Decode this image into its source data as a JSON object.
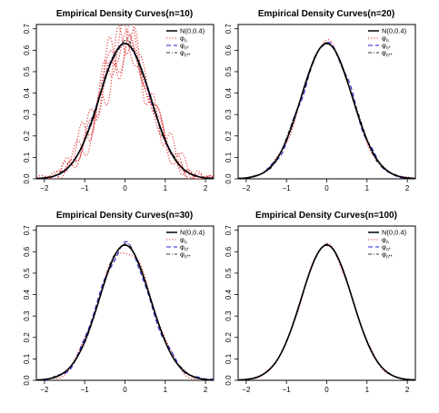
{
  "chart_data": [
    {
      "type": "line",
      "title": "Empirical Density Curves(n=10)",
      "xlabel": "",
      "ylabel": "",
      "xlim": [
        -2.2,
        2.2
      ],
      "ylim": [
        0,
        0.72
      ],
      "x_ticks": [
        -2,
        -1,
        0,
        1,
        2
      ],
      "y_ticks": [
        0.0,
        0.1,
        0.2,
        0.3,
        0.4,
        0.5,
        0.6,
        0.7
      ],
      "grid": false,
      "legend": "top-right",
      "series": [
        {
          "name": "N(0,0.4)",
          "style": "solid",
          "color": "#000000",
          "params": {
            "mean": 0,
            "sd": 0.632
          }
        },
        {
          "name": "φn",
          "style": "dotted",
          "color": "#e03030",
          "spread": 0.08,
          "lines": 5,
          "params": {
            "mean": 0,
            "sd": 0.632
          }
        },
        {
          "name": "φn*",
          "style": "dashed",
          "color": "#2020d0",
          "spread": 0.025,
          "lines": 1,
          "params": {
            "mean": 0,
            "sd": 0.632
          }
        },
        {
          "name": "φn**",
          "style": "dashdot",
          "color": "#333333",
          "spread": 0.015,
          "lines": 1,
          "params": {
            "mean": 0,
            "sd": 0.632
          }
        }
      ]
    },
    {
      "type": "line",
      "title": "Empirical Density Curves(n=20)",
      "xlabel": "",
      "ylabel": "",
      "xlim": [
        -2.2,
        2.2
      ],
      "ylim": [
        0,
        0.72
      ],
      "x_ticks": [
        -2,
        -1,
        0,
        1,
        2
      ],
      "y_ticks": [
        0.0,
        0.1,
        0.2,
        0.3,
        0.4,
        0.5,
        0.6,
        0.7
      ],
      "grid": false,
      "legend": "top-right",
      "series": [
        {
          "name": "N(0,0.4)",
          "style": "solid",
          "color": "#000000",
          "params": {
            "mean": 0,
            "sd": 0.632
          }
        },
        {
          "name": "φn",
          "style": "dotted",
          "color": "#e03030",
          "spread": 0.03,
          "lines": 1,
          "params": {
            "mean": 0,
            "sd": 0.632
          }
        },
        {
          "name": "φn*",
          "style": "dashed",
          "color": "#2020d0",
          "spread": 0.02,
          "lines": 1,
          "params": {
            "mean": 0,
            "sd": 0.632
          }
        },
        {
          "name": "φn**",
          "style": "dashdot",
          "color": "#333333",
          "spread": 0.012,
          "lines": 1,
          "params": {
            "mean": 0,
            "sd": 0.632
          }
        }
      ]
    },
    {
      "type": "line",
      "title": "Empirical Density Curves(n=30)",
      "xlabel": "",
      "ylabel": "",
      "xlim": [
        -2.2,
        2.2
      ],
      "ylim": [
        0,
        0.72
      ],
      "x_ticks": [
        -2,
        -1,
        0,
        1,
        2
      ],
      "y_ticks": [
        0.0,
        0.1,
        0.2,
        0.3,
        0.4,
        0.5,
        0.6,
        0.7
      ],
      "grid": false,
      "legend": "top-right",
      "series": [
        {
          "name": "N(0,0.4)",
          "style": "solid",
          "color": "#000000",
          "params": {
            "mean": 0,
            "sd": 0.632
          }
        },
        {
          "name": "φn",
          "style": "dotted",
          "color": "#e03030",
          "spread": 0.025,
          "lines": 1,
          "params": {
            "mean": 0,
            "sd": 0.632
          }
        },
        {
          "name": "φn*",
          "style": "dashed",
          "color": "#2020d0",
          "spread": 0.018,
          "lines": 1,
          "params": {
            "mean": 0,
            "sd": 0.632
          }
        },
        {
          "name": "φn**",
          "style": "dashdot",
          "color": "#333333",
          "spread": 0.01,
          "lines": 1,
          "params": {
            "mean": 0,
            "sd": 0.632
          }
        }
      ]
    },
    {
      "type": "line",
      "title": "Empirical Density Curves(n=100)",
      "xlabel": "",
      "ylabel": "",
      "xlim": [
        -2.2,
        2.2
      ],
      "ylim": [
        0,
        0.72
      ],
      "x_ticks": [
        -2,
        -1,
        0,
        1,
        2
      ],
      "y_ticks": [
        0.0,
        0.1,
        0.2,
        0.3,
        0.4,
        0.5,
        0.6,
        0.7
      ],
      "grid": false,
      "legend": "top-right",
      "series": [
        {
          "name": "N(0,0.4)",
          "style": "solid",
          "color": "#000000",
          "params": {
            "mean": 0,
            "sd": 0.632
          }
        },
        {
          "name": "φn",
          "style": "dotted",
          "color": "#e03030",
          "spread": 0.012,
          "lines": 1,
          "params": {
            "mean": 0,
            "sd": 0.632
          }
        },
        {
          "name": "φn*",
          "style": "dashed",
          "color": "#2020d0",
          "spread": 0.008,
          "lines": 1,
          "params": {
            "mean": 0,
            "sd": 0.632
          }
        },
        {
          "name": "φn**",
          "style": "dashdot",
          "color": "#333333",
          "spread": 0.005,
          "lines": 1,
          "params": {
            "mean": 0,
            "sd": 0.632
          }
        }
      ]
    }
  ]
}
